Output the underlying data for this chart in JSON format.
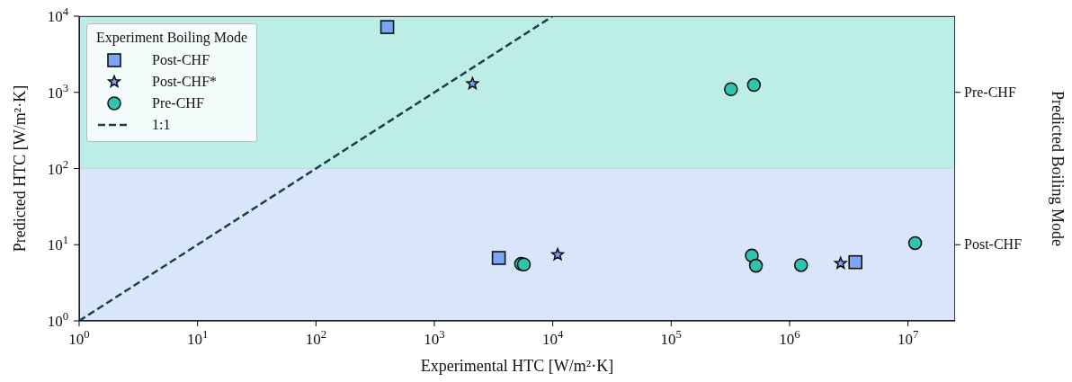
{
  "chart_data": {
    "type": "scatter",
    "xlabel": "Experimental HTC [W/m²·K]",
    "ylabel": "Predicted HTC [W/m²·K]",
    "legend_title": "Experiment Boiling Mode",
    "log": "xy",
    "grid": true,
    "legend": "top left",
    "xlim": [
      1,
      25000000
    ],
    "ylim": [
      1,
      10000
    ],
    "xticks": [
      {
        "value": 1,
        "label": "10$^{0}$"
      },
      {
        "value": 10,
        "label": "10$^{1}$"
      },
      {
        "value": 100,
        "label": "10$^{2}$"
      },
      {
        "value": 1000,
        "label": "10$^{3}$"
      },
      {
        "value": 10000,
        "label": "10$^{4}$"
      },
      {
        "value": 100000,
        "label": "10$^{5}$"
      },
      {
        "value": 1000000,
        "label": "10$^{6}$"
      },
      {
        "value": 10000000,
        "label": "10$^{7}$"
      }
    ],
    "yticks": [
      {
        "value": 1,
        "label": "10$^{0}$"
      },
      {
        "value": 10,
        "label": "10$^{1}$"
      },
      {
        "value": 100,
        "label": "10$^{2}$"
      },
      {
        "value": 1000,
        "label": "10$^{3}$"
      },
      {
        "value": 10000,
        "label": "10$^{4}$"
      }
    ],
    "bands": [
      {
        "axis": "y",
        "from": 1,
        "to": 100,
        "label": "Post-CHF",
        "color": "#d9e5fb"
      },
      {
        "axis": "y",
        "from": 100,
        "to": 10000,
        "label": "Pre-CHF",
        "color": "#bdeee6"
      }
    ],
    "annotations": [
      "Predicted Boiling Mode"
    ],
    "series": [
      {
        "name": "Post-CHF",
        "marker": "square",
        "color": "#7aa7f5",
        "x": [
          400,
          3500,
          3600000
        ],
        "values": [
          7200,
          6.7,
          5.9
        ]
      },
      {
        "name": "Post-CHF*",
        "marker": "star",
        "color": "#7aa7f5",
        "x": [
          2100,
          11000,
          2700000
        ],
        "values": [
          1300,
          7.4,
          5.7
        ]
      },
      {
        "name": "Pre-CHF",
        "marker": "circle",
        "color": "#2ec4b0",
        "x": [
          320000,
          500000,
          5400,
          5700,
          480000,
          520000,
          1250000,
          11500000
        ],
        "values": [
          1100,
          1250,
          5.6,
          5.5,
          7.2,
          5.3,
          5.4,
          10.5
        ]
      },
      {
        "name": "1:1",
        "type": "line",
        "marker": "none",
        "line_style": "dashed",
        "color": "#1d3f4a",
        "x": [
          1,
          10000
        ],
        "values": [
          1,
          10000
        ]
      }
    ]
  }
}
